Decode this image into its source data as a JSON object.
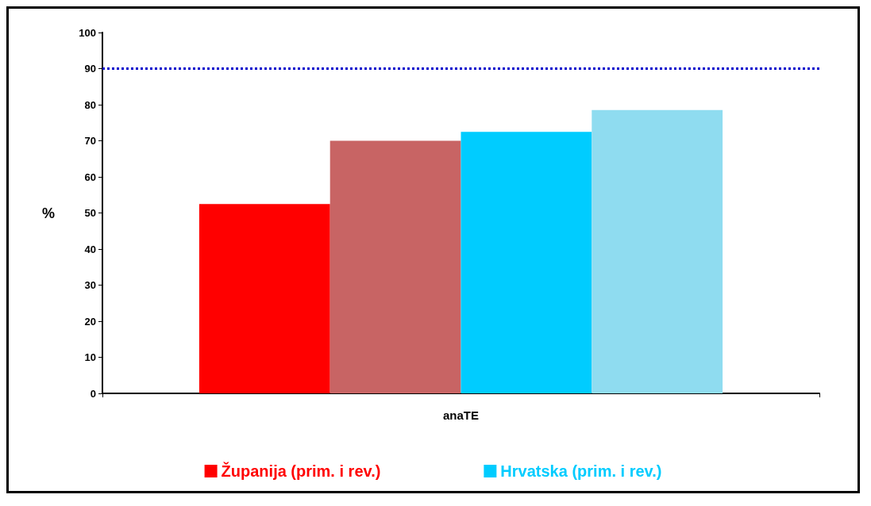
{
  "chart_data": {
    "type": "bar",
    "categories": [
      "anaTE"
    ],
    "ylabel": "%",
    "ylim": [
      0,
      100
    ],
    "yticks": [
      0,
      10,
      20,
      30,
      40,
      50,
      60,
      70,
      80,
      90,
      100
    ],
    "grid": false,
    "legend": "bottom",
    "series": [
      {
        "name": "Županija (prim. i rev.)",
        "color": "#ff0000",
        "values": [
          52.5
        ]
      },
      {
        "color": "#c86464",
        "values": [
          70
        ]
      },
      {
        "name": "Hrvatska (prim. i rev.)",
        "color": "#00ccff",
        "values": [
          72.5
        ]
      },
      {
        "color": "#8fdcf0",
        "values": [
          78.5
        ]
      }
    ],
    "ref_lines": [
      {
        "axis": "y",
        "value": 90,
        "color": "#0000cc",
        "line_style": "dotted"
      }
    ]
  }
}
